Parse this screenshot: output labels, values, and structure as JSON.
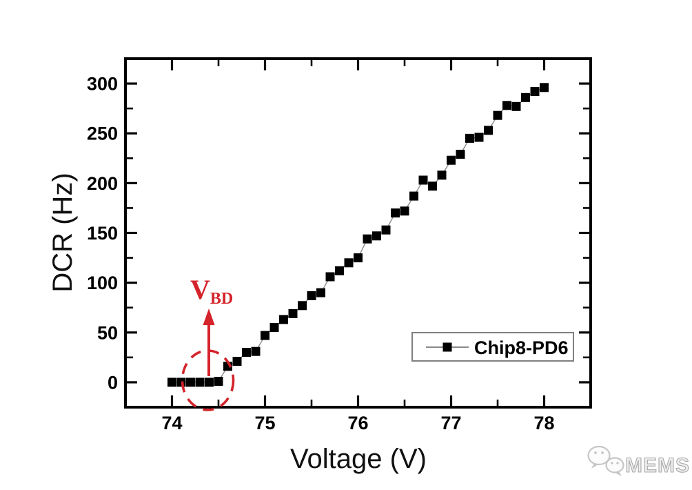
{
  "chart_data": {
    "type": "scatter",
    "subtype": "line+symbol",
    "title": "",
    "xlabel": "Voltage (V)",
    "ylabel": "DCR (Hz)",
    "xlim": [
      73.5,
      78.5
    ],
    "ylim": [
      -25,
      325
    ],
    "x_major_ticks": [
      74,
      75,
      76,
      77,
      78
    ],
    "x_minor_ticks": [
      74.5,
      75.5,
      76.5,
      77.5
    ],
    "y_major_ticks": [
      0,
      50,
      100,
      150,
      200,
      250,
      300
    ],
    "y_minor_ticks": [
      25,
      75,
      125,
      175,
      225,
      275
    ],
    "grid": "off",
    "frame": "box-with-inward-ticks",
    "series": [
      {
        "name": "Chip8-PD6",
        "marker": "filled-square",
        "marker_color": "#000000",
        "line_color": "#8a8a8a",
        "x": [
          74.0,
          74.1,
          74.2,
          74.3,
          74.4,
          74.5,
          74.6,
          74.7,
          74.8,
          74.9,
          75.0,
          75.1,
          75.2,
          75.3,
          75.4,
          75.5,
          75.6,
          75.7,
          75.8,
          75.9,
          76.0,
          76.1,
          76.2,
          76.3,
          76.4,
          76.5,
          76.6,
          76.7,
          76.8,
          76.9,
          77.0,
          77.1,
          77.2,
          77.3,
          77.4,
          77.5,
          77.6,
          77.7,
          77.8,
          77.9,
          78.0
        ],
        "y": [
          0,
          0,
          0,
          0,
          0,
          1,
          16,
          21,
          30,
          31,
          47,
          55,
          63,
          69,
          77,
          87,
          90,
          106,
          112,
          120,
          125,
          144,
          147,
          153,
          170,
          172,
          187,
          203,
          197,
          208,
          223,
          229,
          245,
          246,
          253,
          268,
          278,
          277,
          286,
          292,
          296
        ]
      }
    ],
    "legend": {
      "position": "inside-lower-right",
      "label": "Chip8-PD6"
    },
    "annotation": {
      "text_main": "V",
      "text_sub": "BD",
      "color": "#d4232a",
      "circle_center_x": 74.4,
      "circle_center_y": 0,
      "arrow_x": 74.41,
      "arrow_from_dcr": 5,
      "arrow_tip_dcr": 73
    }
  },
  "legend": {
    "label": "Chip8-PD6"
  },
  "annotations": {
    "vbd_main": "V",
    "vbd_sub": "BD"
  },
  "watermark": {
    "text": "MEMS",
    "icon": "wechat-chat-bubbles-icon"
  },
  "colors": {
    "axis": "#000000",
    "marker": "#000000",
    "series_line": "#8a8a8a",
    "annotation_red": "#d4232a",
    "legend_border": "#7f7f7f",
    "watermark_gray": "#b9b9b9"
  }
}
